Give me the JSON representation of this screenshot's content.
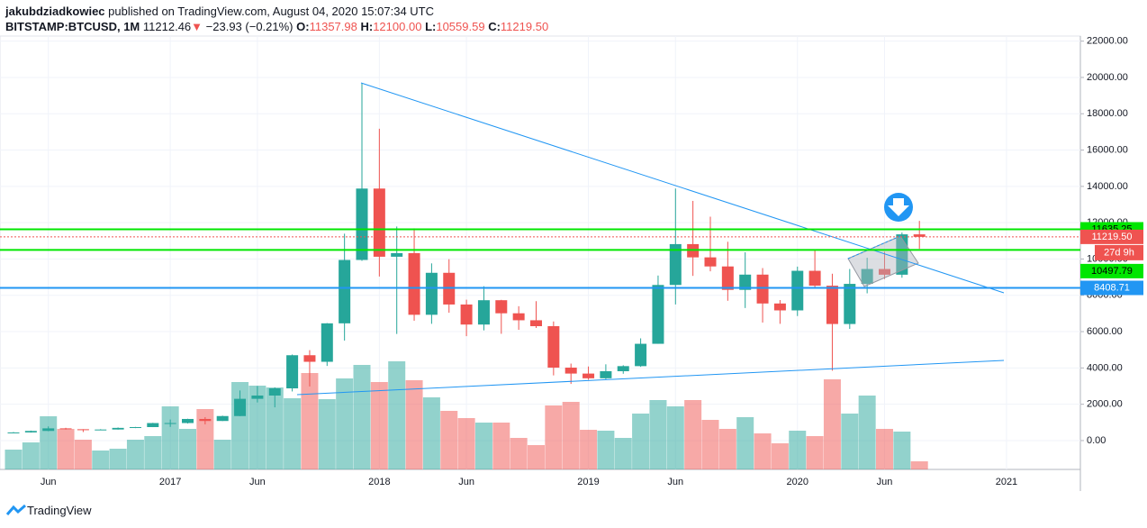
{
  "header": {
    "author": "jakubdziadkowiec",
    "published": "published on TradingView.com, August 04, 2020 15:07:34 UTC",
    "symbol": "BITSTAMP:BTCUSD, 1M",
    "last": "11212.46",
    "arrow": "▼",
    "change": "−23.93 (−0.21%)",
    "ohlc": [
      {
        "label": "O:",
        "value": "11357.98"
      },
      {
        "label": "H:",
        "value": "12100.00"
      },
      {
        "label": "L:",
        "value": "10559.59"
      },
      {
        "label": "C:",
        "value": "11219.50"
      }
    ],
    "logo": "TradingView"
  },
  "chart_data": {
    "type": "candlestick",
    "open": [
      416,
      448,
      531,
      673,
      624,
      573,
      609,
      699,
      742,
      964,
      965,
      1190,
      1079,
      1350,
      2300,
      2480,
      2875,
      4700,
      4339,
      6457,
      9947,
      13880,
      10125,
      10325,
      6928,
      9240,
      7494,
      6390,
      7730,
      7010,
      6626,
      6300,
      4017,
      3690,
      3430,
      3820,
      4100,
      5330,
      8570,
      10820,
      10090,
      9590,
      8300,
      9140,
      7550,
      7170,
      9350,
      8530,
      6420,
      8630,
      9450,
      9135,
      11357.98
    ],
    "high": [
      467,
      550,
      779,
      703,
      627,
      628,
      722,
      753,
      977,
      1159,
      1200,
      1290,
      1371,
      2760,
      2999,
      2930,
      4740,
      4980,
      6470,
      11395,
      19666,
      17176,
      11789,
      11690,
      9759,
      9990,
      7760,
      8500,
      7750,
      7400,
      7680,
      6560,
      4240,
      4080,
      4200,
      4150,
      5630,
      9090,
      13880,
      13200,
      12330,
      10950,
      10370,
      9500,
      7740,
      9580,
      10500,
      9190,
      9450,
      10070,
      10400,
      11460,
      12100
    ],
    "low": [
      412,
      437,
      516,
      605,
      470,
      570,
      604,
      686,
      740,
      752,
      940,
      890,
      1076,
      1343,
      2100,
      1830,
      2705,
      2980,
      4110,
      5508,
      9900,
      9035,
      5873,
      6600,
      6430,
      7040,
      5750,
      6070,
      5880,
      6100,
      6200,
      3590,
      3120,
      3350,
      3380,
      3680,
      4060,
      5330,
      7500,
      9070,
      9320,
      7700,
      7300,
      6500,
      6430,
      6860,
      8440,
      3850,
      6150,
      8110,
      8900,
      8970,
      10559.59
    ],
    "close": [
      448,
      531,
      673,
      624,
      573,
      609,
      699,
      742,
      964,
      965,
      1190,
      1079,
      1350,
      2300,
      2480,
      2875,
      4700,
      4339,
      6457,
      9947,
      13880,
      10125,
      10325,
      6928,
      9240,
      7494,
      6390,
      7730,
      7010,
      6626,
      6300,
      4017,
      3690,
      3430,
      3820,
      4100,
      5330,
      8570,
      10820,
      10090,
      9590,
      8300,
      9140,
      7550,
      7170,
      9350,
      8530,
      6420,
      8630,
      9450,
      9135,
      11357.98,
      11219.5
    ],
    "volume": [
      22,
      30,
      59,
      45,
      33,
      21,
      23,
      33,
      37,
      70,
      45,
      67,
      33,
      97,
      93,
      91,
      79,
      107,
      78,
      101,
      116,
      97,
      120,
      99,
      80,
      65,
      57,
      52,
      52,
      35,
      27,
      71,
      75,
      44,
      43,
      35,
      62,
      77,
      70,
      77,
      55,
      45,
      58,
      40,
      29,
      43,
      37,
      100,
      62,
      82,
      45,
      42,
      9
    ],
    "colors": {
      "up": "#26a69a",
      "down": "#ef5350"
    },
    "ylim": [
      -1590,
      22280
    ],
    "yticks": [
      {
        "value": 0,
        "label": "0.00"
      },
      {
        "value": 2000,
        "label": "2000.00"
      },
      {
        "value": 4000,
        "label": "4000.00"
      },
      {
        "value": 6000,
        "label": "6000.00"
      },
      {
        "value": 8000,
        "label": "8000.00"
      },
      {
        "value": 10000,
        "label": "10000.00"
      },
      {
        "value": 12000,
        "label": "12000.00"
      },
      {
        "value": 14000,
        "label": "14000.00"
      },
      {
        "value": 16000,
        "label": "16000.00"
      },
      {
        "value": 18000,
        "label": "18000.00"
      },
      {
        "value": 20000,
        "label": "20000.00"
      },
      {
        "value": 22000,
        "label": "22000.00"
      }
    ],
    "xticks": [
      {
        "value": 2,
        "label": "Jun"
      },
      {
        "value": 9,
        "label": "2017"
      },
      {
        "value": 14,
        "label": "Jun"
      },
      {
        "value": 21,
        "label": "2018"
      },
      {
        "value": 26,
        "label": "Jun"
      },
      {
        "value": 33,
        "label": "2019"
      },
      {
        "value": 38,
        "label": "Jun"
      },
      {
        "value": 45,
        "label": "2020"
      },
      {
        "value": 50,
        "label": "Jun"
      },
      {
        "value": 57,
        "label": "2021"
      }
    ],
    "price_lines": [
      {
        "value": 11635.25,
        "label": "11635.25",
        "color": "#00e600",
        "style": "solid"
      },
      {
        "value": 11219.5,
        "label": "11219.50",
        "color": "#ef5350",
        "style": "dotted"
      },
      {
        "value": 10497.79,
        "label": "10497.79",
        "color": "#00e600",
        "style": "solid"
      },
      {
        "value": 8408.71,
        "label": "8408.71",
        "color": "#2196f3",
        "style": "solid"
      }
    ],
    "countdown": "27d 9h"
  }
}
